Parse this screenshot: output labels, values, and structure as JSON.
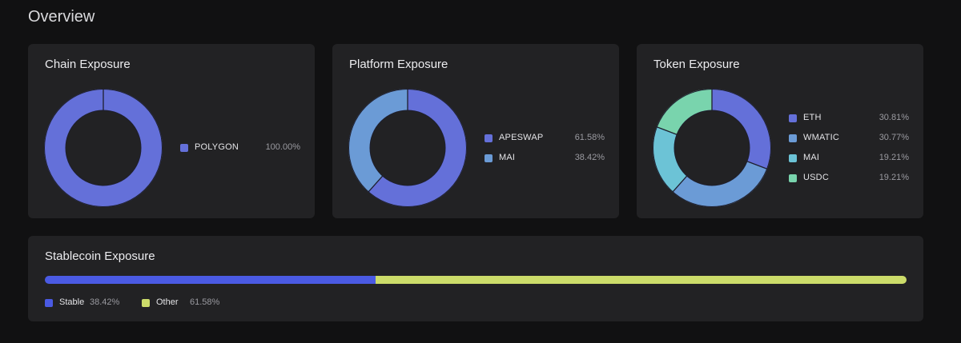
{
  "page": {
    "title": "Overview"
  },
  "chart_data": [
    {
      "type": "pie",
      "title": "Chain Exposure",
      "categories": [
        "POLYGON"
      ],
      "values": [
        100.0
      ],
      "value_labels": [
        "100.00%"
      ],
      "colors": [
        "#6470d9"
      ],
      "legend": "right"
    },
    {
      "type": "pie",
      "title": "Platform Exposure",
      "categories": [
        "APESWAP",
        "MAI"
      ],
      "values": [
        61.58,
        38.42
      ],
      "value_labels": [
        "61.58%",
        "38.42%"
      ],
      "colors": [
        "#6470d9",
        "#6b9bd6"
      ],
      "legend": "right"
    },
    {
      "type": "pie",
      "title": "Token Exposure",
      "categories": [
        "ETH",
        "WMATIC",
        "MAI",
        "USDC"
      ],
      "values": [
        30.81,
        30.77,
        19.21,
        19.21
      ],
      "value_labels": [
        "30.81%",
        "30.77%",
        "19.21%",
        "19.21%"
      ],
      "colors": [
        "#6470d9",
        "#6b9bd6",
        "#6cc3d6",
        "#79d4ad"
      ],
      "legend": "right"
    },
    {
      "type": "bar",
      "title": "Stablecoin Exposure",
      "categories": [
        "Stable",
        "Other"
      ],
      "values": [
        38.42,
        61.58
      ],
      "value_labels": [
        "38.42%",
        "61.58%"
      ],
      "colors": [
        "#4a5ae3",
        "#ccdc6a"
      ],
      "legend": "bottom-left"
    }
  ]
}
